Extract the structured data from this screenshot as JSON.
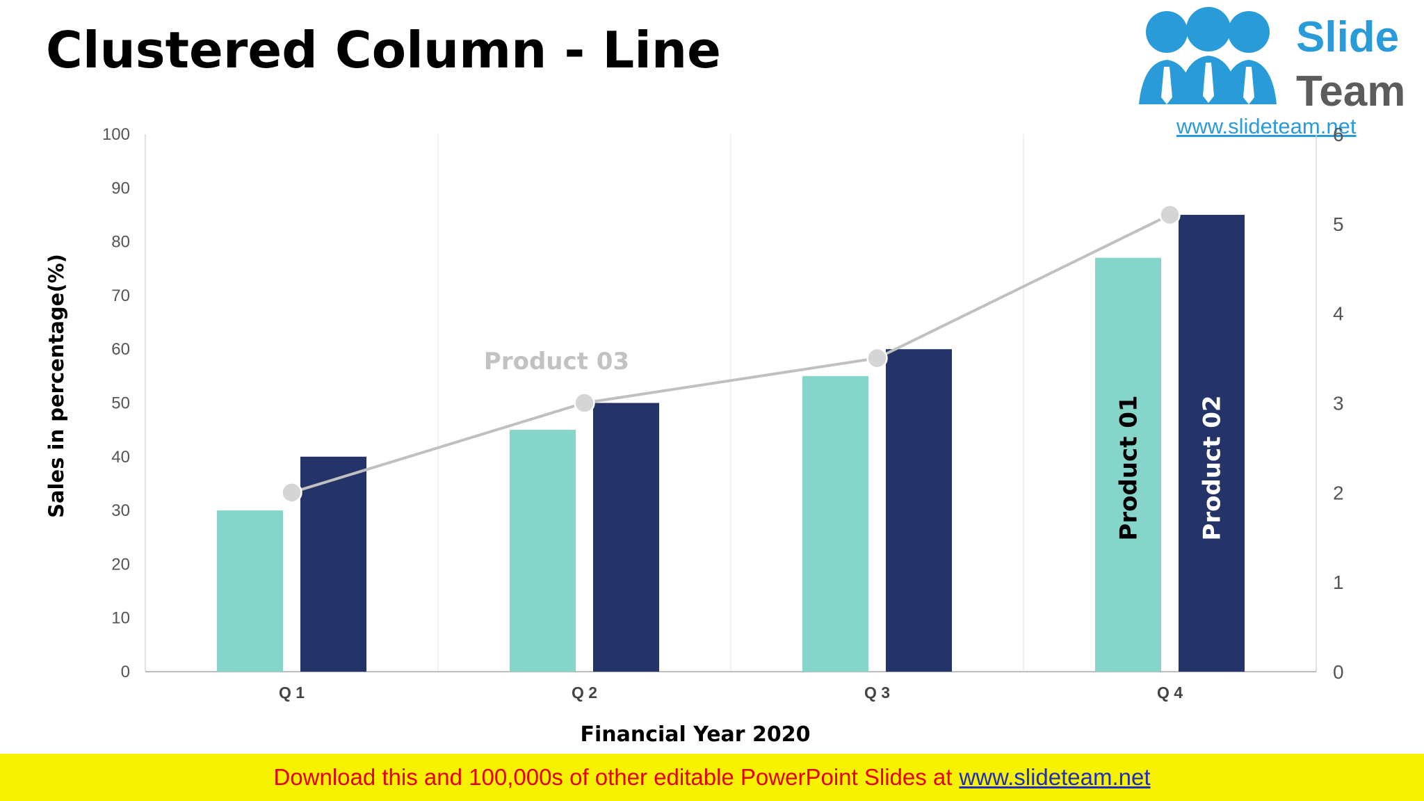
{
  "title": "Clustered Column - Line",
  "logo": {
    "word1": "Slide",
    "word2": "Team",
    "url": "www.slideteam.net",
    "colors": {
      "blue": "#2a9bd9",
      "gray": "#5c5c5c"
    }
  },
  "banner": {
    "text": "Download this and 100,000s of other editable PowerPoint Slides at",
    "link": "www.slideteam.net",
    "colors": {
      "background": "#f7f300",
      "text": "#e60000",
      "link": "#1f2db8"
    }
  },
  "chart_data": {
    "type": "bar",
    "categories": [
      "Q 1",
      "Q 2",
      "Q 3",
      "Q 4"
    ],
    "xlabel": "Financial Year 2020",
    "ylabel": "Sales in percentage(%)",
    "ylim": [
      0,
      100
    ],
    "yticks": [
      "0",
      "10",
      "20",
      "30",
      "40",
      "50",
      "60",
      "70",
      "80",
      "90",
      "100"
    ],
    "y2lim": [
      0,
      6
    ],
    "y2ticks": [
      "0",
      "1",
      "2",
      "3",
      "4",
      "5",
      "6"
    ],
    "grid": "vertical",
    "series": [
      {
        "name": "Product 01",
        "type": "bar",
        "axis": "left",
        "values": [
          30,
          45,
          55,
          77
        ],
        "color": "#86d5cb",
        "label_color": "#000000"
      },
      {
        "name": "Product 02",
        "type": "bar",
        "axis": "left",
        "values": [
          40,
          50,
          60,
          85
        ],
        "color": "#243368",
        "label_color": "#ffffff"
      },
      {
        "name": "Product 03",
        "type": "line",
        "axis": "right",
        "values": [
          2,
          3,
          3.5,
          5.1
        ],
        "color": "#c0c0c0"
      }
    ]
  }
}
